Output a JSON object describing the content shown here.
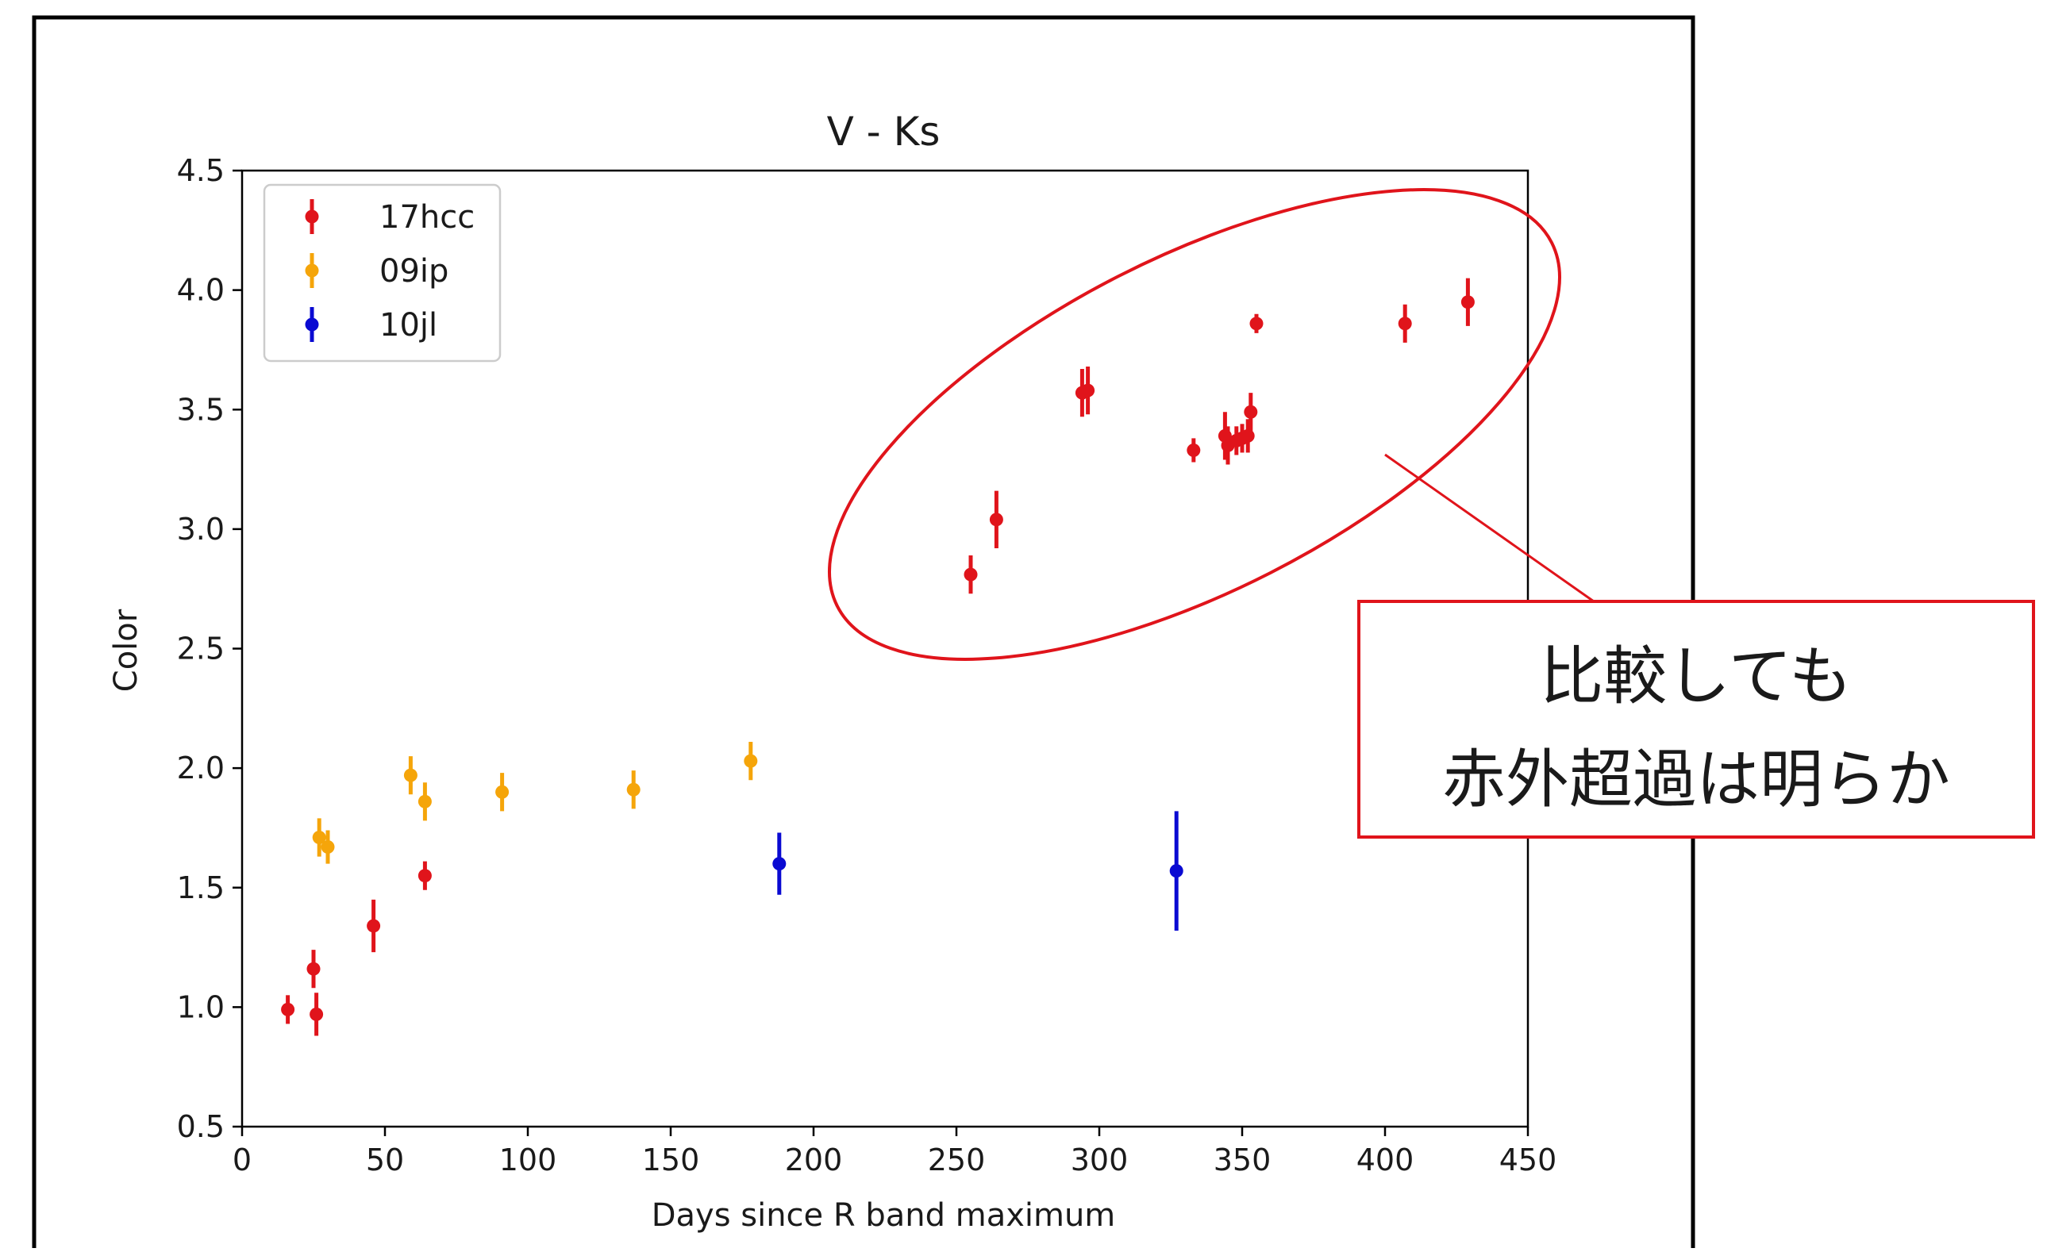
{
  "chart_data": {
    "type": "scatter",
    "title": "V - Ks",
    "xlabel": "Days since R band maximum",
    "ylabel": "Color",
    "xlim": [
      0,
      450
    ],
    "ylim": [
      0.5,
      4.5
    ],
    "xticks": [
      0,
      50,
      100,
      150,
      200,
      250,
      300,
      350,
      400,
      450
    ],
    "yticks": [
      0.5,
      1.0,
      1.5,
      2.0,
      2.5,
      3.0,
      3.5,
      4.0,
      4.5
    ],
    "xtick_labels": [
      "0",
      "50",
      "100",
      "150",
      "200",
      "250",
      "300",
      "350",
      "400",
      "450"
    ],
    "ytick_labels": [
      "0.5",
      "1.0",
      "1.5",
      "2.0",
      "2.5",
      "3.0",
      "3.5",
      "4.0",
      "4.5"
    ],
    "grid": false,
    "legend_position": "top-left",
    "series": [
      {
        "name": "17hcc",
        "color": "#e0141b",
        "points": [
          {
            "x": 16,
            "y": 0.99,
            "err": 0.06
          },
          {
            "x": 25,
            "y": 1.16,
            "err": 0.08
          },
          {
            "x": 26,
            "y": 0.97,
            "err": 0.09
          },
          {
            "x": 46,
            "y": 1.34,
            "err": 0.11
          },
          {
            "x": 64,
            "y": 1.55,
            "err": 0.06
          },
          {
            "x": 255,
            "y": 2.81,
            "err": 0.08
          },
          {
            "x": 264,
            "y": 3.04,
            "err": 0.12
          },
          {
            "x": 294,
            "y": 3.57,
            "err": 0.1
          },
          {
            "x": 296,
            "y": 3.58,
            "err": 0.1
          },
          {
            "x": 333,
            "y": 3.33,
            "err": 0.05
          },
          {
            "x": 344,
            "y": 3.39,
            "err": 0.1
          },
          {
            "x": 345,
            "y": 3.35,
            "err": 0.08
          },
          {
            "x": 348,
            "y": 3.37,
            "err": 0.06
          },
          {
            "x": 350,
            "y": 3.38,
            "err": 0.06
          },
          {
            "x": 352,
            "y": 3.39,
            "err": 0.07
          },
          {
            "x": 353,
            "y": 3.49,
            "err": 0.08
          },
          {
            "x": 355,
            "y": 3.86,
            "err": 0.04
          },
          {
            "x": 407,
            "y": 3.86,
            "err": 0.08
          },
          {
            "x": 429,
            "y": 3.95,
            "err": 0.1
          }
        ]
      },
      {
        "name": "09ip",
        "color": "#f5a50a",
        "points": [
          {
            "x": 27,
            "y": 1.71,
            "err": 0.08
          },
          {
            "x": 30,
            "y": 1.67,
            "err": 0.07
          },
          {
            "x": 59,
            "y": 1.97,
            "err": 0.08
          },
          {
            "x": 64,
            "y": 1.86,
            "err": 0.08
          },
          {
            "x": 91,
            "y": 1.9,
            "err": 0.08
          },
          {
            "x": 137,
            "y": 1.91,
            "err": 0.08
          },
          {
            "x": 178,
            "y": 2.03,
            "err": 0.08
          }
        ]
      },
      {
        "name": "10jl",
        "color": "#0a0ad2",
        "points": [
          {
            "x": 188,
            "y": 1.6,
            "err": 0.13
          },
          {
            "x": 327,
            "y": 1.57,
            "err": 0.25
          }
        ]
      }
    ]
  },
  "annotation": {
    "lines": [
      "比較しても",
      "赤外超過は明らか"
    ],
    "color": "#e0141b"
  }
}
